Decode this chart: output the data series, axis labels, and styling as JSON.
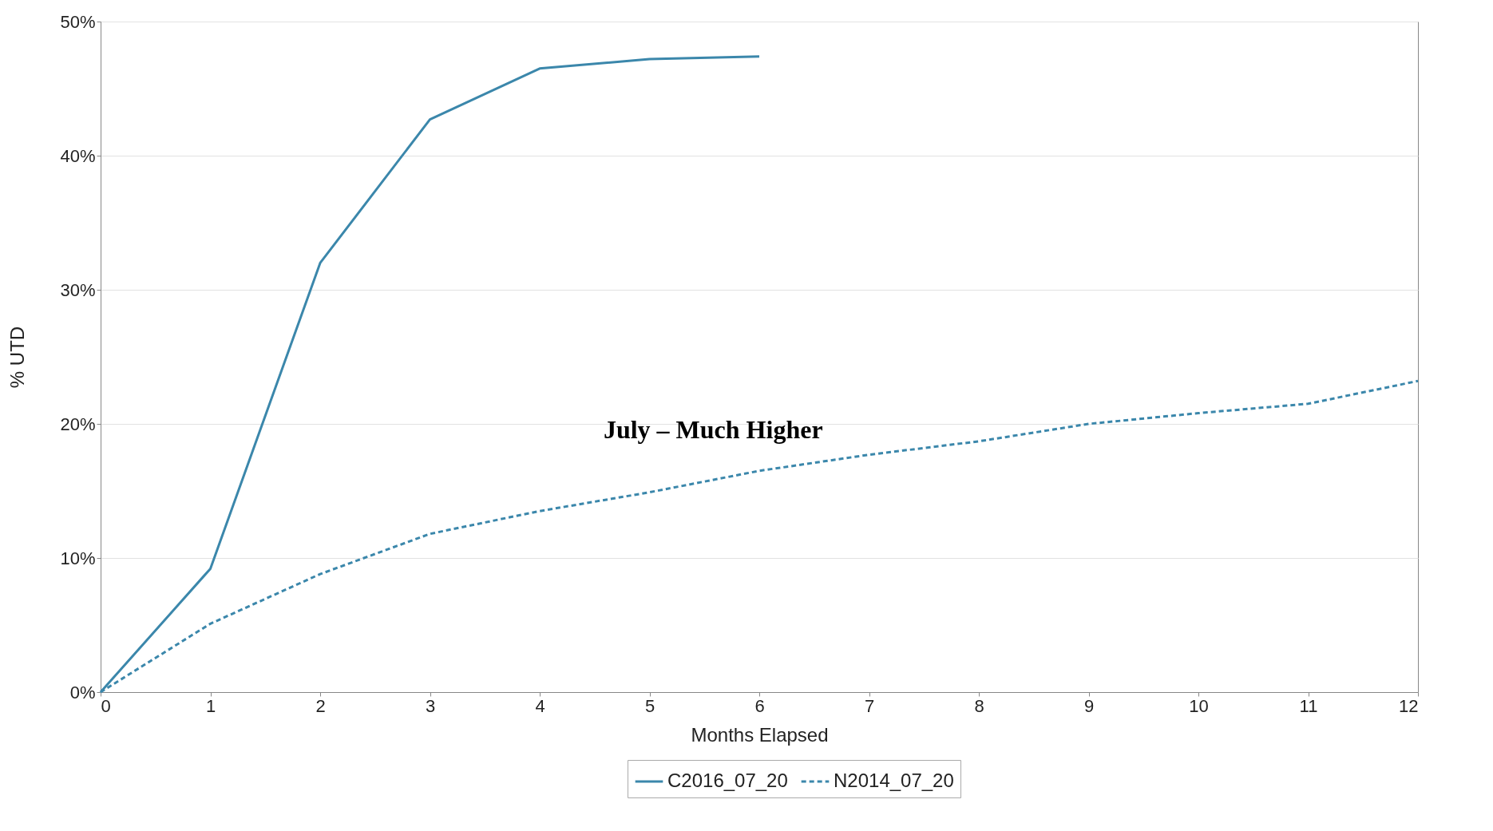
{
  "chart_data": {
    "type": "line",
    "xlabel": "Months Elapsed",
    "ylabel": "% UTD",
    "x": [
      0,
      1,
      2,
      3,
      4,
      5,
      6,
      7,
      8,
      9,
      10,
      11,
      12
    ],
    "series": [
      {
        "name": "C2016_07_20",
        "color": "#3b87ab",
        "line_style": "solid",
        "values": [
          0,
          9.2,
          32.0,
          42.7,
          46.5,
          47.2,
          47.4,
          null,
          null,
          null,
          null,
          null,
          null
        ]
      },
      {
        "name": "N2014_07_20",
        "color": "#3b87ab",
        "line_style": "dashed",
        "values": [
          0,
          5.1,
          8.8,
          11.8,
          13.5,
          14.9,
          16.5,
          17.7,
          18.7,
          20.0,
          20.8,
          21.5,
          23.2
        ]
      }
    ],
    "xlim": [
      0,
      12
    ],
    "xticks": [
      0,
      1,
      2,
      3,
      4,
      5,
      6,
      7,
      8,
      9,
      10,
      11,
      12
    ],
    "ylim": [
      0,
      50
    ],
    "yticks": [
      {
        "value": 0,
        "label": "0%"
      },
      {
        "value": 10,
        "label": "10%"
      },
      {
        "value": 20,
        "label": "20%"
      },
      {
        "value": 30,
        "label": "30%"
      },
      {
        "value": 40,
        "label": "40%"
      },
      {
        "value": 50,
        "label": "50%"
      }
    ],
    "grid": "y",
    "legend": "bottom",
    "marker": "none",
    "annotations": [
      "July – Much Higher"
    ]
  }
}
